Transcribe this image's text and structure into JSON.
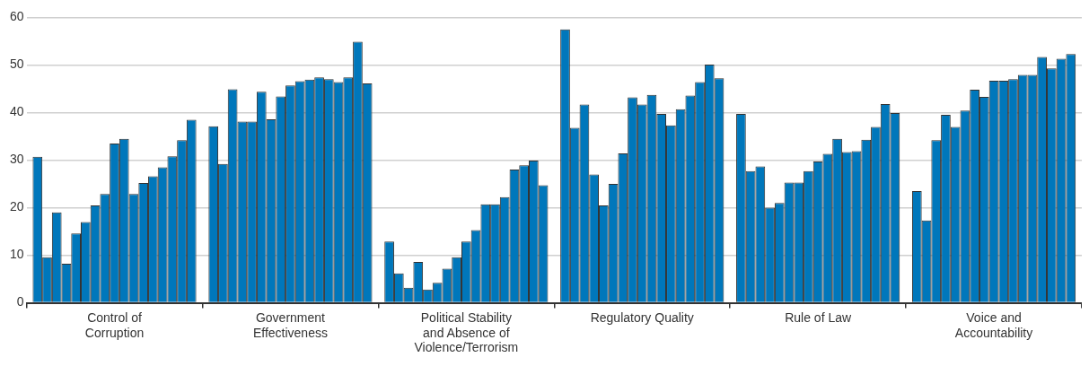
{
  "chart_data": {
    "type": "bar",
    "categories": [
      "Control of Corruption",
      "Government Effectiveness",
      "Political Stability and Absence of Violence/Terrorism",
      "Regulatory Quality",
      "Rule of Law",
      "Voice and Accountability"
    ],
    "series": [
      {
        "color": "#0077bb",
        "values": [
          30.7,
          37.1,
          12.9,
          57.5,
          39.7,
          23.5
        ]
      },
      {
        "color": "#0077bb",
        "values": [
          9.6,
          29.2,
          6.2,
          36.8,
          27.7,
          17.3
        ]
      },
      {
        "color": "#0077bb",
        "values": [
          19.0,
          44.9,
          3.2,
          41.7,
          28.7,
          34.2
        ]
      },
      {
        "color": "#0077bb",
        "values": [
          8.2,
          38.1,
          8.6,
          27.0,
          20.0,
          39.5
        ]
      },
      {
        "color": "#0077bb",
        "values": [
          14.6,
          38.1,
          2.8,
          20.5,
          21.0,
          37.0
        ]
      },
      {
        "color": "#0077bb",
        "values": [
          17.0,
          44.4,
          4.2,
          25.0,
          25.3,
          40.4
        ]
      },
      {
        "color": "#0077bb",
        "values": [
          20.5,
          38.6,
          7.2,
          31.4,
          25.3,
          44.8
        ]
      },
      {
        "color": "#0077bb",
        "values": [
          22.9,
          43.4,
          9.6,
          43.2,
          27.7,
          43.3
        ]
      },
      {
        "color": "#0077bb",
        "values": [
          33.5,
          45.7,
          12.9,
          41.7,
          29.7,
          46.7
        ]
      },
      {
        "color": "#0077bb",
        "values": [
          34.5,
          46.6,
          15.3,
          43.7,
          31.3,
          46.7
        ]
      },
      {
        "color": "#0077bb",
        "values": [
          22.9,
          46.9,
          20.7,
          39.7,
          34.5,
          47.0
        ]
      },
      {
        "color": "#0077bb",
        "values": [
          25.2,
          47.4,
          20.7,
          37.3,
          31.7,
          47.9
        ]
      },
      {
        "color": "#0077bb",
        "values": [
          26.6,
          47.0,
          22.2,
          40.7,
          31.9,
          47.9
        ]
      },
      {
        "color": "#0077bb",
        "values": [
          28.5,
          46.4,
          28.0,
          43.6,
          34.3,
          51.7
        ]
      },
      {
        "color": "#0077bb",
        "values": [
          30.8,
          47.4,
          28.9,
          46.4,
          37.0,
          49.3
        ]
      },
      {
        "color": "#0077bb",
        "values": [
          34.2,
          54.9,
          29.9,
          50.1,
          41.8,
          51.3
        ]
      },
      {
        "color": "#0077bb",
        "values": [
          38.5,
          46.1,
          24.7,
          47.2,
          39.9,
          52.3
        ]
      }
    ],
    "ylim": [
      0,
      60
    ],
    "yticks": [
      0,
      10,
      20,
      30,
      40,
      50,
      60
    ],
    "grid": "y"
  }
}
